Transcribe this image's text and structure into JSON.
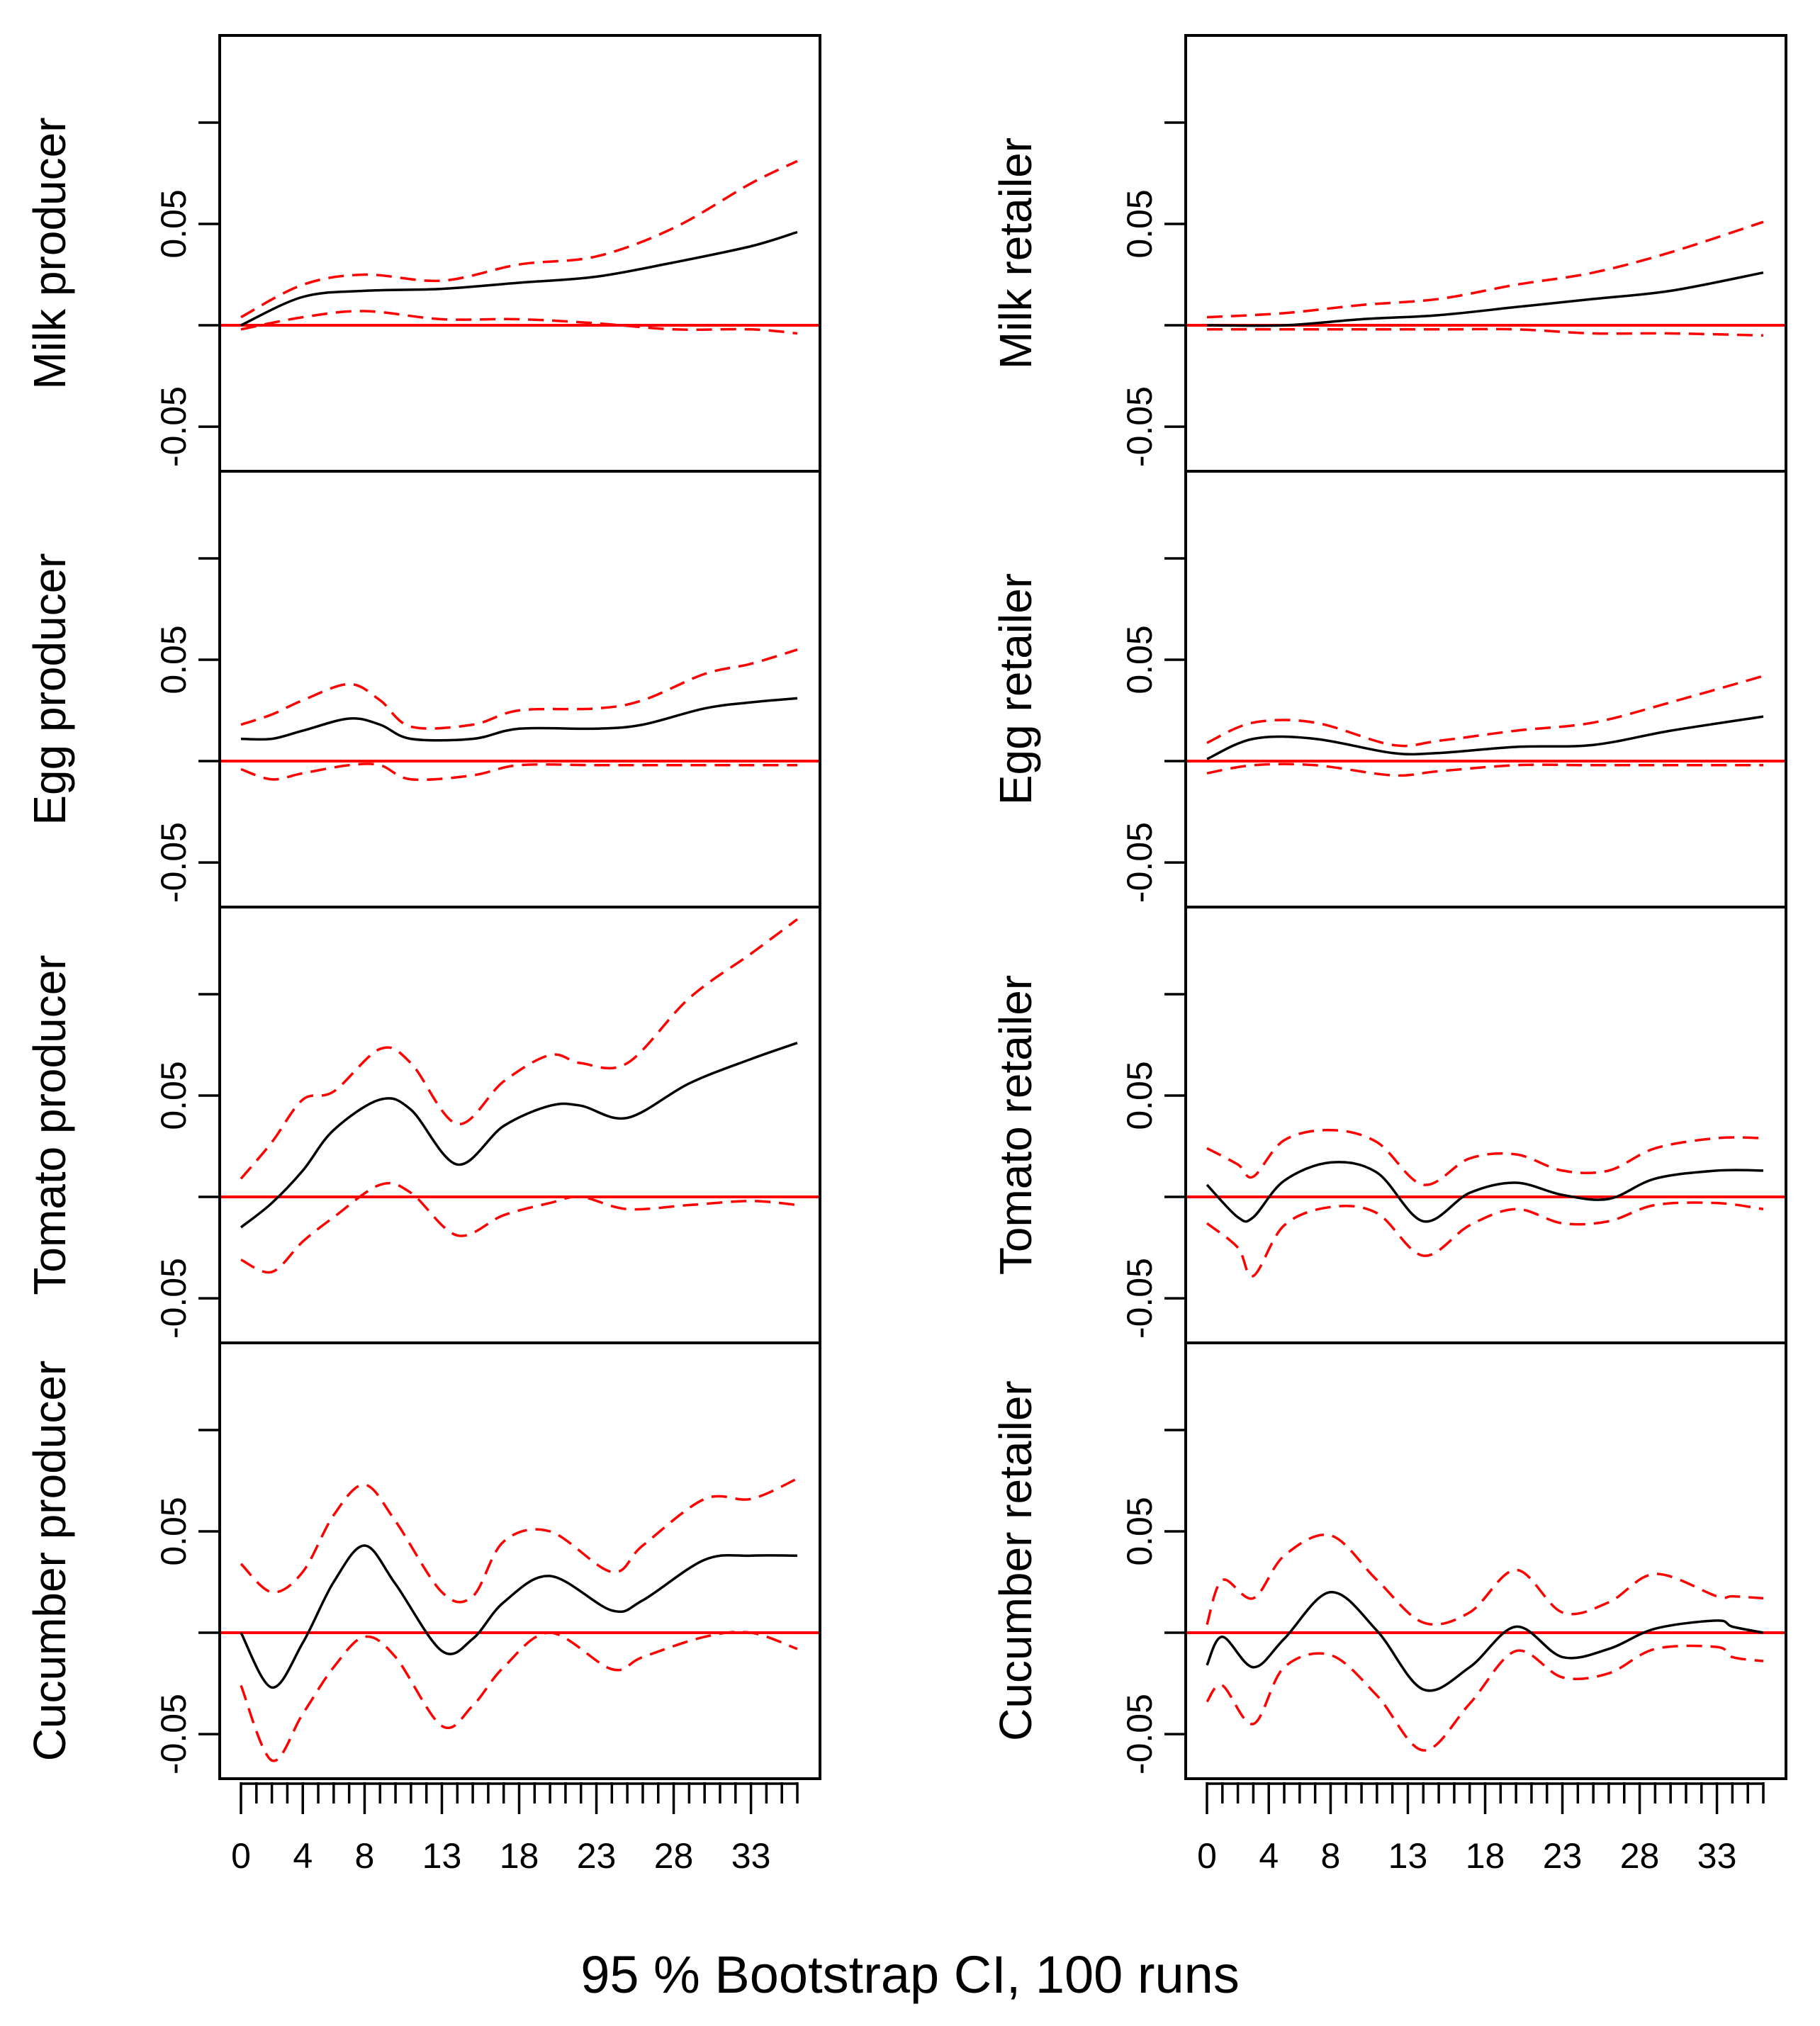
{
  "chart_data": {
    "type": "line",
    "caption": "95 % Bootstrap CI,  100 runs",
    "y_ticks": [
      -0.05,
      0,
      0.05,
      0.1
    ],
    "y_tick_labels": [
      "-0.05",
      "0.05"
    ],
    "x_tick_labels": [
      "0",
      "4",
      "8",
      "13",
      "18",
      "23",
      "28",
      "33"
    ],
    "x_tick_values": [
      0,
      4,
      8,
      13,
      18,
      23,
      28,
      33
    ],
    "x_range": [
      0,
      36
    ],
    "ylim": [
      -0.072,
      0.143
    ],
    "columns": [
      {
        "panels": [
          {
            "label": "Milk producer",
            "points": [
              {
                "x": 0,
                "irf": 0.0,
                "lower": -0.002,
                "upper": 0.004
              },
              {
                "x": 4,
                "irf": 0.014,
                "lower": 0.004,
                "upper": 0.02
              },
              {
                "x": 8,
                "irf": 0.017,
                "lower": 0.007,
                "upper": 0.025
              },
              {
                "x": 13,
                "irf": 0.018,
                "lower": 0.003,
                "upper": 0.022
              },
              {
                "x": 18,
                "irf": 0.021,
                "lower": 0.003,
                "upper": 0.03
              },
              {
                "x": 23,
                "irf": 0.024,
                "lower": 0.001,
                "upper": 0.034
              },
              {
                "x": 28,
                "irf": 0.031,
                "lower": -0.002,
                "upper": 0.048
              },
              {
                "x": 33,
                "irf": 0.039,
                "lower": -0.002,
                "upper": 0.07
              },
              {
                "x": 36,
                "irf": 0.046,
                "lower": -0.004,
                "upper": 0.081
              }
            ]
          },
          {
            "label": "Egg producer",
            "points": [
              {
                "x": 0,
                "irf": 0.011,
                "lower": -0.004,
                "upper": 0.018
              },
              {
                "x": 2,
                "irf": 0.011,
                "lower": -0.009,
                "upper": 0.023
              },
              {
                "x": 4,
                "irf": 0.015,
                "lower": -0.006,
                "upper": 0.03
              },
              {
                "x": 7,
                "irf": 0.021,
                "lower": -0.002,
                "upper": 0.038
              },
              {
                "x": 9,
                "irf": 0.018,
                "lower": -0.002,
                "upper": 0.03
              },
              {
                "x": 11,
                "irf": 0.011,
                "lower": -0.009,
                "upper": 0.017
              },
              {
                "x": 15,
                "irf": 0.011,
                "lower": -0.007,
                "upper": 0.018
              },
              {
                "x": 18,
                "irf": 0.016,
                "lower": -0.002,
                "upper": 0.025
              },
              {
                "x": 23,
                "irf": 0.016,
                "lower": -0.002,
                "upper": 0.026
              },
              {
                "x": 26,
                "irf": 0.018,
                "lower": -0.002,
                "upper": 0.03
              },
              {
                "x": 30,
                "irf": 0.026,
                "lower": -0.002,
                "upper": 0.043
              },
              {
                "x": 33,
                "irf": 0.029,
                "lower": -0.002,
                "upper": 0.048
              },
              {
                "x": 36,
                "irf": 0.031,
                "lower": -0.002,
                "upper": 0.055
              }
            ]
          },
          {
            "label": "Tomato producer",
            "points": [
              {
                "x": 0,
                "irf": -0.015,
                "lower": -0.031,
                "upper": 0.009
              },
              {
                "x": 2,
                "irf": -0.003,
                "lower": -0.037,
                "upper": 0.027
              },
              {
                "x": 4,
                "irf": 0.013,
                "lower": -0.022,
                "upper": 0.048
              },
              {
                "x": 6,
                "irf": 0.033,
                "lower": -0.01,
                "upper": 0.052
              },
              {
                "x": 9,
                "irf": 0.048,
                "lower": 0.006,
                "upper": 0.073
              },
              {
                "x": 11,
                "irf": 0.043,
                "lower": 0.002,
                "upper": 0.066
              },
              {
                "x": 14,
                "irf": 0.016,
                "lower": -0.019,
                "upper": 0.036
              },
              {
                "x": 17,
                "irf": 0.035,
                "lower": -0.009,
                "upper": 0.057
              },
              {
                "x": 20,
                "irf": 0.045,
                "lower": -0.003,
                "upper": 0.07
              },
              {
                "x": 22,
                "irf": 0.045,
                "lower": -0.0,
                "upper": 0.066
              },
              {
                "x": 25,
                "irf": 0.039,
                "lower": -0.006,
                "upper": 0.066
              },
              {
                "x": 29,
                "irf": 0.056,
                "lower": -0.004,
                "upper": 0.098
              },
              {
                "x": 33,
                "irf": 0.068,
                "lower": -0.002,
                "upper": 0.12
              },
              {
                "x": 36,
                "irf": 0.076,
                "lower": -0.004,
                "upper": 0.137
              }
            ]
          },
          {
            "label": "Cucumber producer",
            "points": [
              {
                "x": 0,
                "irf": 0.0,
                "lower": -0.026,
                "upper": 0.034
              },
              {
                "x": 2,
                "irf": -0.027,
                "lower": -0.063,
                "upper": 0.02
              },
              {
                "x": 4,
                "irf": -0.005,
                "lower": -0.04,
                "upper": 0.03
              },
              {
                "x": 6,
                "irf": 0.025,
                "lower": -0.017,
                "upper": 0.058
              },
              {
                "x": 8,
                "irf": 0.043,
                "lower": -0.002,
                "upper": 0.073
              },
              {
                "x": 10,
                "irf": 0.024,
                "lower": -0.012,
                "upper": 0.055
              },
              {
                "x": 13,
                "irf": -0.009,
                "lower": -0.046,
                "upper": 0.02
              },
              {
                "x": 15,
                "irf": -0.003,
                "lower": -0.036,
                "upper": 0.018
              },
              {
                "x": 17,
                "irf": 0.015,
                "lower": -0.017,
                "upper": 0.045
              },
              {
                "x": 20,
                "irf": 0.028,
                "lower": -0.0,
                "upper": 0.05
              },
              {
                "x": 24,
                "irf": 0.011,
                "lower": -0.018,
                "upper": 0.03
              },
              {
                "x": 26,
                "irf": 0.016,
                "lower": -0.012,
                "upper": 0.043
              },
              {
                "x": 30,
                "irf": 0.036,
                "lower": -0.002,
                "upper": 0.066
              },
              {
                "x": 33,
                "irf": 0.038,
                "lower": -0.0,
                "upper": 0.066
              },
              {
                "x": 36,
                "irf": 0.038,
                "lower": -0.008,
                "upper": 0.076
              }
            ]
          }
        ]
      },
      {
        "panels": [
          {
            "label": "Milk retailer",
            "points": [
              {
                "x": 0,
                "irf": 0.0,
                "lower": -0.002,
                "upper": 0.004
              },
              {
                "x": 5,
                "irf": 0.0,
                "lower": -0.002,
                "upper": 0.006
              },
              {
                "x": 10,
                "irf": 0.003,
                "lower": -0.002,
                "upper": 0.01
              },
              {
                "x": 15,
                "irf": 0.005,
                "lower": -0.002,
                "upper": 0.013
              },
              {
                "x": 20,
                "irf": 0.009,
                "lower": -0.002,
                "upper": 0.02
              },
              {
                "x": 25,
                "irf": 0.013,
                "lower": -0.004,
                "upper": 0.026
              },
              {
                "x": 30,
                "irf": 0.017,
                "lower": -0.004,
                "upper": 0.036
              },
              {
                "x": 36,
                "irf": 0.026,
                "lower": -0.005,
                "upper": 0.051
              }
            ]
          },
          {
            "label": "Egg retailer",
            "points": [
              {
                "x": 0,
                "irf": 0.001,
                "lower": -0.006,
                "upper": 0.009
              },
              {
                "x": 3,
                "irf": 0.011,
                "lower": -0.002,
                "upper": 0.019
              },
              {
                "x": 7,
                "irf": 0.011,
                "lower": -0.002,
                "upper": 0.019
              },
              {
                "x": 12,
                "irf": 0.004,
                "lower": -0.007,
                "upper": 0.008
              },
              {
                "x": 15,
                "irf": 0.004,
                "lower": -0.005,
                "upper": 0.01
              },
              {
                "x": 20,
                "irf": 0.007,
                "lower": -0.002,
                "upper": 0.015
              },
              {
                "x": 25,
                "irf": 0.008,
                "lower": -0.002,
                "upper": 0.019
              },
              {
                "x": 30,
                "irf": 0.015,
                "lower": -0.002,
                "upper": 0.029
              },
              {
                "x": 36,
                "irf": 0.022,
                "lower": -0.002,
                "upper": 0.042
              }
            ]
          },
          {
            "label": "Tomato retailer",
            "points": [
              {
                "x": 0,
                "irf": 0.006,
                "lower": -0.013,
                "upper": 0.024
              },
              {
                "x": 2,
                "irf": -0.01,
                "lower": -0.025,
                "upper": 0.016
              },
              {
                "x": 3,
                "irf": -0.01,
                "lower": -0.039,
                "upper": 0.01
              },
              {
                "x": 5,
                "irf": 0.008,
                "lower": -0.014,
                "upper": 0.028
              },
              {
                "x": 8,
                "irf": 0.017,
                "lower": -0.005,
                "upper": 0.033
              },
              {
                "x": 11,
                "irf": 0.012,
                "lower": -0.008,
                "upper": 0.027
              },
              {
                "x": 14,
                "irf": -0.012,
                "lower": -0.029,
                "upper": 0.006
              },
              {
                "x": 17,
                "irf": 0.002,
                "lower": -0.014,
                "upper": 0.019
              },
              {
                "x": 20,
                "irf": 0.007,
                "lower": -0.006,
                "upper": 0.021
              },
              {
                "x": 23,
                "irf": 0.001,
                "lower": -0.013,
                "upper": 0.013
              },
              {
                "x": 26,
                "irf": -0.001,
                "lower": -0.012,
                "upper": 0.013
              },
              {
                "x": 29,
                "irf": 0.009,
                "lower": -0.004,
                "upper": 0.024
              },
              {
                "x": 33,
                "irf": 0.013,
                "lower": -0.003,
                "upper": 0.029
              },
              {
                "x": 36,
                "irf": 0.013,
                "lower": -0.006,
                "upper": 0.029
              }
            ]
          },
          {
            "label": "Cucumber retailer",
            "points": [
              {
                "x": 0,
                "irf": -0.016,
                "lower": -0.034,
                "upper": 0.004
              },
              {
                "x": 1,
                "irf": -0.002,
                "lower": -0.026,
                "upper": 0.026
              },
              {
                "x": 3,
                "irf": -0.017,
                "lower": -0.045,
                "upper": 0.017
              },
              {
                "x": 5,
                "irf": -0.003,
                "lower": -0.017,
                "upper": 0.038
              },
              {
                "x": 8,
                "irf": 0.02,
                "lower": -0.011,
                "upper": 0.048
              },
              {
                "x": 11,
                "irf": 0.001,
                "lower": -0.031,
                "upper": 0.026
              },
              {
                "x": 14,
                "irf": -0.028,
                "lower": -0.058,
                "upper": 0.005
              },
              {
                "x": 17,
                "irf": -0.017,
                "lower": -0.035,
                "upper": 0.01
              },
              {
                "x": 20,
                "irf": 0.003,
                "lower": -0.009,
                "upper": 0.031
              },
              {
                "x": 23,
                "irf": -0.012,
                "lower": -0.022,
                "upper": 0.01
              },
              {
                "x": 26,
                "irf": -0.008,
                "lower": -0.02,
                "upper": 0.015
              },
              {
                "x": 29,
                "irf": 0.002,
                "lower": -0.008,
                "upper": 0.029
              },
              {
                "x": 33,
                "irf": 0.006,
                "lower": -0.007,
                "upper": 0.018
              },
              {
                "x": 34,
                "irf": 0.003,
                "lower": -0.012,
                "upper": 0.018
              },
              {
                "x": 36,
                "irf": 0.0,
                "lower": -0.014,
                "upper": 0.017
              }
            ]
          }
        ]
      }
    ]
  }
}
